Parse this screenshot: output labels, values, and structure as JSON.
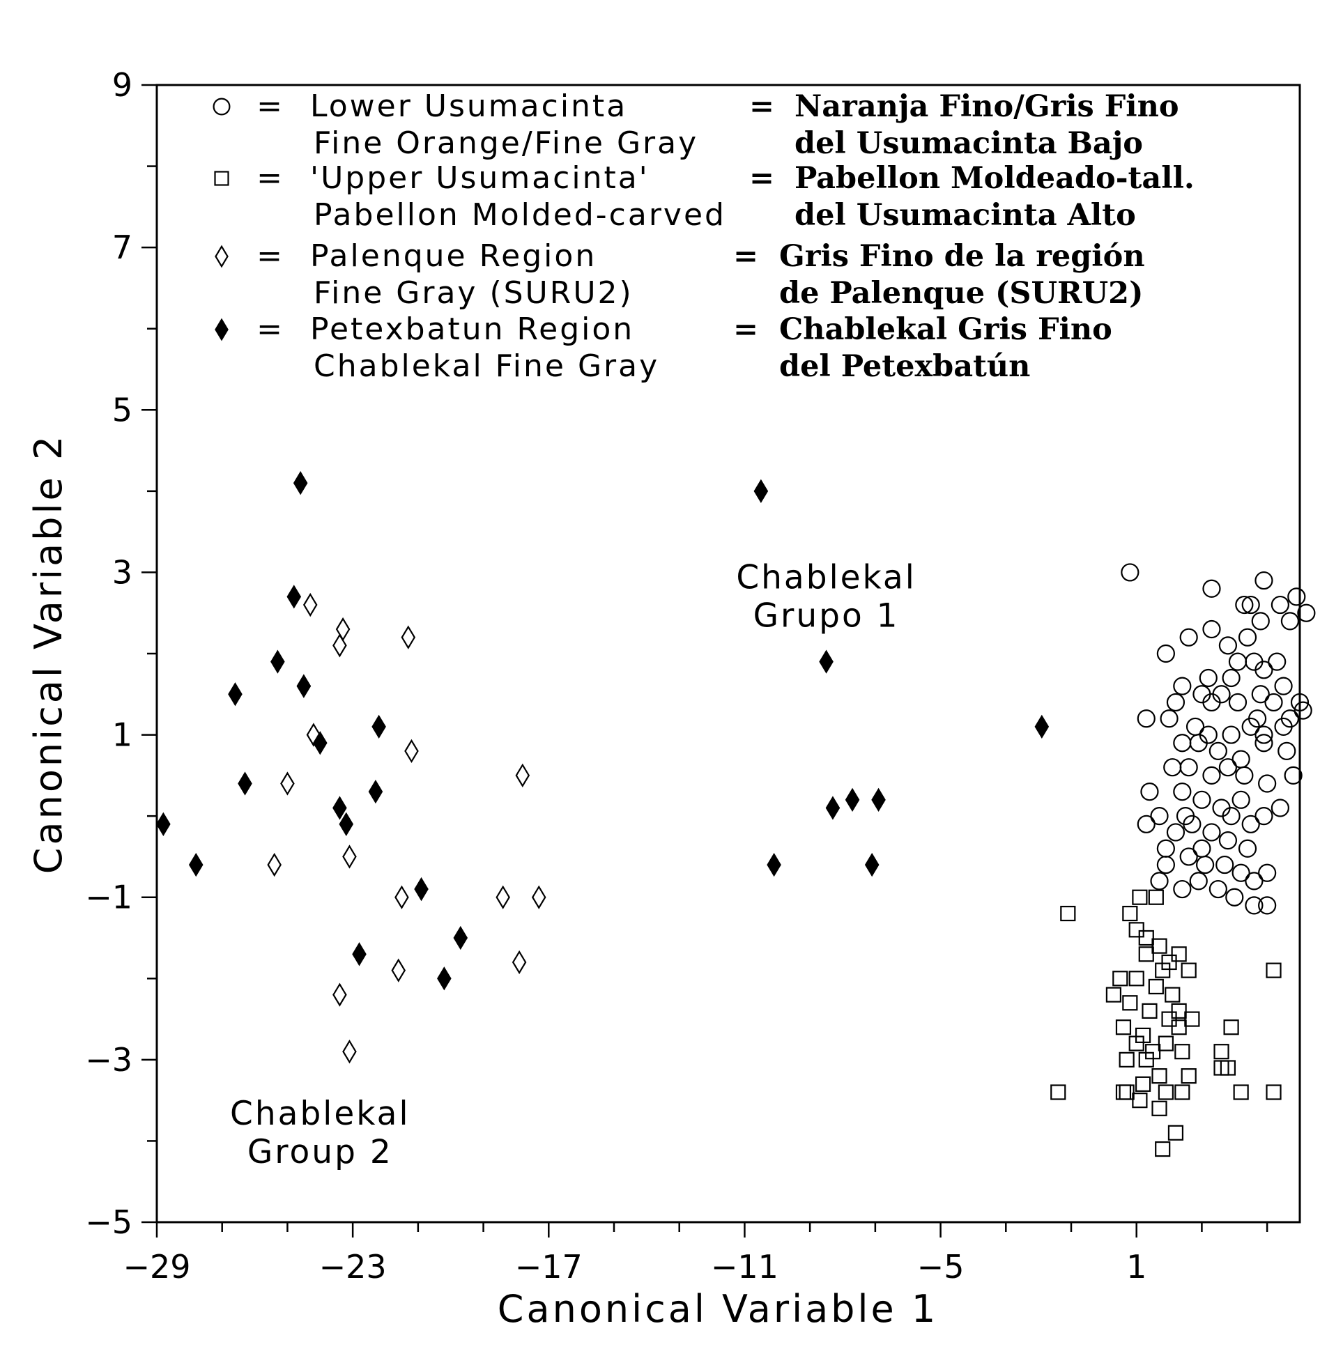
{
  "chart_data": {
    "type": "scatter",
    "xlabel": "Canonical Variable 1",
    "ylabel": "Canonical Variable 2",
    "xlim": [
      -29,
      6
    ],
    "ylim": [
      -5,
      9
    ],
    "x_ticks": [
      -29,
      -23,
      -17,
      -11,
      -5,
      1
    ],
    "x_minor_step": 2,
    "y_ticks": [
      -5,
      -3,
      -1,
      1,
      3,
      5,
      7,
      9
    ],
    "y_minor_step": 1,
    "grid": false,
    "legend_position": "top",
    "legend": [
      {
        "symbol": "○",
        "marker": "circle",
        "en_line1": "Lower Usumacinta",
        "en_line2": "Fine Orange/Fine Gray",
        "es_line1": "Naranja Fino/Gris Fino",
        "es_line2": "del Usumacinta Bajo"
      },
      {
        "symbol": "□",
        "marker": "square",
        "en_line1": "'Upper Usumacinta'",
        "en_line2": "Pabellon Molded-carved",
        "es_line1": "Pabellon Moldeado-tall.",
        "es_line2": "del Usumacinta Alto"
      },
      {
        "symbol": "◊",
        "marker": "diamond-open",
        "en_line1": "Palenque Region",
        "en_line2": "Fine Gray (SURU2)",
        "es_line1": "Gris Fino de la región",
        "es_line2": "de Palenque (SURU2)"
      },
      {
        "symbol": "♦",
        "marker": "diamond-filled",
        "en_line1": "Petexbatun Region",
        "en_line2": "Chablekal Fine Gray",
        "es_line1": "Chablekal Gris Fino",
        "es_line2": "del Petexbatún"
      }
    ],
    "equals_sign": "=",
    "annotations": [
      {
        "line1": "Chablekal",
        "line2": "Grupo 1",
        "x": -8.5,
        "y": 2.8
      },
      {
        "line1": "Chablekal",
        "line2": "Group 2",
        "x": -24.0,
        "y": -3.8
      }
    ],
    "series": [
      {
        "name": "Lower Usumacinta Fine Orange/Fine Gray",
        "marker": "circle",
        "points": [
          [
            0.8,
            3.0
          ],
          [
            3.3,
            2.8
          ],
          [
            4.9,
            2.9
          ],
          [
            5.9,
            2.7
          ],
          [
            6.2,
            2.5
          ],
          [
            3.3,
            2.3
          ],
          [
            4.3,
            2.6
          ],
          [
            4.5,
            2.6
          ],
          [
            5.4,
            2.6
          ],
          [
            5.7,
            2.4
          ],
          [
            4.8,
            2.4
          ],
          [
            1.9,
            2.0
          ],
          [
            2.6,
            2.2
          ],
          [
            4.4,
            2.2
          ],
          [
            3.8,
            2.1
          ],
          [
            4.1,
            1.9
          ],
          [
            4.6,
            1.9
          ],
          [
            5.3,
            1.9
          ],
          [
            4.9,
            1.8
          ],
          [
            2.4,
            1.6
          ],
          [
            3.2,
            1.7
          ],
          [
            3.6,
            1.5
          ],
          [
            3.3,
            1.4
          ],
          [
            4.1,
            1.4
          ],
          [
            4.8,
            1.5
          ],
          [
            5.5,
            1.6
          ],
          [
            6.0,
            1.4
          ],
          [
            6.1,
            1.3
          ],
          [
            1.3,
            1.2
          ],
          [
            2.0,
            1.2
          ],
          [
            2.8,
            1.1
          ],
          [
            3.2,
            1.0
          ],
          [
            3.9,
            1.0
          ],
          [
            4.5,
            1.1
          ],
          [
            4.9,
            1.0
          ],
          [
            5.5,
            1.1
          ],
          [
            5.7,
            1.2
          ],
          [
            2.4,
            0.9
          ],
          [
            3.5,
            0.8
          ],
          [
            4.2,
            0.7
          ],
          [
            4.9,
            0.9
          ],
          [
            5.6,
            0.8
          ],
          [
            2.6,
            0.6
          ],
          [
            3.3,
            0.5
          ],
          [
            3.8,
            0.6
          ],
          [
            4.3,
            0.5
          ],
          [
            5.0,
            0.4
          ],
          [
            5.8,
            0.5
          ],
          [
            1.4,
            0.3
          ],
          [
            2.4,
            0.3
          ],
          [
            3.0,
            0.2
          ],
          [
            3.6,
            0.1
          ],
          [
            4.2,
            0.2
          ],
          [
            4.9,
            0.0
          ],
          [
            5.4,
            0.1
          ],
          [
            1.3,
            -0.1
          ],
          [
            1.7,
            0.0
          ],
          [
            2.2,
            -0.2
          ],
          [
            2.7,
            -0.1
          ],
          [
            3.3,
            -0.2
          ],
          [
            3.9,
            0.0
          ],
          [
            4.5,
            -0.1
          ],
          [
            1.9,
            -0.4
          ],
          [
            2.6,
            -0.5
          ],
          [
            3.1,
            -0.6
          ],
          [
            3.7,
            -0.6
          ],
          [
            4.2,
            -0.7
          ],
          [
            4.6,
            -0.8
          ],
          [
            5.0,
            -0.7
          ],
          [
            1.7,
            -0.8
          ],
          [
            2.4,
            -0.9
          ],
          [
            2.9,
            -0.8
          ],
          [
            3.5,
            -0.9
          ],
          [
            4.0,
            -1.0
          ],
          [
            4.6,
            -1.1
          ],
          [
            5.0,
            -1.1
          ],
          [
            1.9,
            -0.6
          ],
          [
            3.0,
            -0.4
          ],
          [
            3.8,
            -0.3
          ],
          [
            2.1,
            0.6
          ],
          [
            2.9,
            0.9
          ],
          [
            3.9,
            1.7
          ],
          [
            4.7,
            1.2
          ],
          [
            5.2,
            1.4
          ],
          [
            2.2,
            1.4
          ],
          [
            3.0,
            1.5
          ],
          [
            2.5,
            0.0
          ],
          [
            4.4,
            -0.4
          ]
        ]
      },
      {
        "name": "'Upper Usumacinta' Pabellon Molded-carved",
        "marker": "square",
        "points": [
          [
            -1.1,
            -1.2
          ],
          [
            0.8,
            -1.2
          ],
          [
            1.1,
            -1.0
          ],
          [
            1.6,
            -1.0
          ],
          [
            1.0,
            -1.4
          ],
          [
            1.3,
            -1.5
          ],
          [
            1.7,
            -1.6
          ],
          [
            2.0,
            -1.8
          ],
          [
            1.3,
            -1.7
          ],
          [
            1.8,
            -1.9
          ],
          [
            2.3,
            -1.7
          ],
          [
            2.6,
            -1.9
          ],
          [
            5.2,
            -1.9
          ],
          [
            0.5,
            -2.0
          ],
          [
            1.0,
            -2.0
          ],
          [
            1.6,
            -2.1
          ],
          [
            2.1,
            -2.2
          ],
          [
            0.3,
            -2.2
          ],
          [
            0.8,
            -2.3
          ],
          [
            1.4,
            -2.4
          ],
          [
            2.3,
            -2.4
          ],
          [
            2.7,
            -2.5
          ],
          [
            0.6,
            -2.6
          ],
          [
            1.2,
            -2.7
          ],
          [
            1.9,
            -2.8
          ],
          [
            2.3,
            -2.6
          ],
          [
            3.9,
            -2.6
          ],
          [
            1.0,
            -2.8
          ],
          [
            1.5,
            -2.9
          ],
          [
            2.4,
            -2.9
          ],
          [
            3.6,
            -2.9
          ],
          [
            0.7,
            -3.0
          ],
          [
            3.8,
            -3.1
          ],
          [
            1.7,
            -3.2
          ],
          [
            2.6,
            -3.2
          ],
          [
            1.2,
            -3.3
          ],
          [
            0.7,
            -3.4
          ],
          [
            1.9,
            -3.4
          ],
          [
            2.4,
            -3.4
          ],
          [
            3.6,
            -3.1
          ],
          [
            -1.4,
            -3.4
          ],
          [
            0.6,
            -3.4
          ],
          [
            1.1,
            -3.5
          ],
          [
            4.2,
            -3.4
          ],
          [
            5.2,
            -3.4
          ],
          [
            1.7,
            -3.6
          ],
          [
            2.2,
            -3.9
          ],
          [
            1.8,
            -4.1
          ],
          [
            1.3,
            -3.0
          ],
          [
            2.0,
            -2.5
          ]
        ]
      },
      {
        "name": "Palenque Region Fine Gray (SURU2)",
        "marker": "diamond-open",
        "points": [
          [
            -24.3,
            2.6
          ],
          [
            -23.3,
            2.3
          ],
          [
            -23.4,
            2.1
          ],
          [
            -21.3,
            2.2
          ],
          [
            -24.5,
            1.6
          ],
          [
            -24.2,
            1.0
          ],
          [
            -21.2,
            0.8
          ],
          [
            -25.0,
            0.4
          ],
          [
            -17.8,
            0.5
          ],
          [
            -23.1,
            -0.5
          ],
          [
            -25.4,
            -0.6
          ],
          [
            -21.5,
            -1.0
          ],
          [
            -17.3,
            -1.0
          ],
          [
            -18.4,
            -1.0
          ],
          [
            -21.6,
            -1.9
          ],
          [
            -17.9,
            -1.8
          ],
          [
            -23.4,
            -2.2
          ],
          [
            -23.1,
            -2.9
          ]
        ]
      },
      {
        "name": "Petexbatun Region Chablekal Fine Gray",
        "marker": "diamond-filled",
        "points": [
          [
            -24.6,
            4.1
          ],
          [
            -24.8,
            2.7
          ],
          [
            -25.3,
            1.9
          ],
          [
            -24.5,
            1.6
          ],
          [
            -26.6,
            1.5
          ],
          [
            -22.2,
            1.1
          ],
          [
            -24.0,
            0.9
          ],
          [
            -26.3,
            0.4
          ],
          [
            -22.3,
            0.3
          ],
          [
            -23.4,
            0.1
          ],
          [
            -23.2,
            -0.1
          ],
          [
            -28.8,
            -0.1
          ],
          [
            -27.8,
            -0.6
          ],
          [
            -20.9,
            -0.9
          ],
          [
            -19.7,
            -1.5
          ],
          [
            -22.8,
            -1.7
          ],
          [
            -20.2,
            -2.0
          ],
          [
            -10.5,
            4.0
          ],
          [
            -8.5,
            1.9
          ],
          [
            -1.9,
            1.1
          ],
          [
            -8.3,
            0.1
          ],
          [
            -7.7,
            0.2
          ],
          [
            -6.9,
            0.2
          ],
          [
            -10.1,
            -0.6
          ],
          [
            -7.1,
            -0.6
          ]
        ]
      }
    ]
  }
}
